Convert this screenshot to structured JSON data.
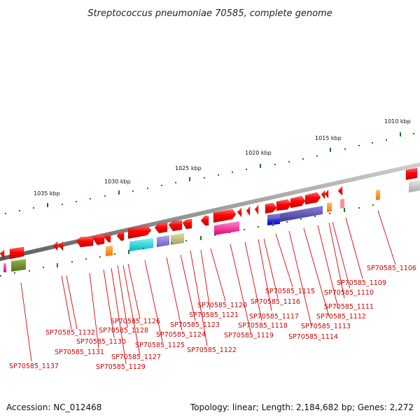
{
  "title": "Streptococcus pneumoniae 70585, complete genome",
  "footer": {
    "accession": "Accession: NC_012468",
    "stats": "Topology: linear; Length: 2,184,682 bp; Genes: 2,272"
  },
  "ruler_labels": [
    "1010 kbp",
    "1015 kbp",
    "1020 kbp",
    "1025 kbp",
    "1030 kbp",
    "1035 kbp"
  ],
  "gene_labels": [
    "SP70585_1106",
    "SP70585_1109",
    "SP70585_1110",
    "SP70585_1111",
    "SP70585_1112",
    "SP70585_1113",
    "SP70585_1114",
    "SP70585_1115",
    "SP70585_1116",
    "SP70585_1117",
    "SP70585_1118",
    "SP70585_1119",
    "SP70585_1120",
    "SP70585_1121",
    "SP70585_1122",
    "SP70585_1123",
    "SP70585_1124",
    "SP70585_1125",
    "SP70585_1126",
    "SP70585_1127",
    "SP70585_1128",
    "SP70585_1129",
    "SP70585_1130",
    "SP70585_1131",
    "SP70585_1132",
    "SP70585_1137"
  ],
  "colors": {
    "backbone": "#8c8c8c",
    "gene_arrow": "#ee0000",
    "label": "#d00000",
    "tick": "#1a7a1a"
  }
}
